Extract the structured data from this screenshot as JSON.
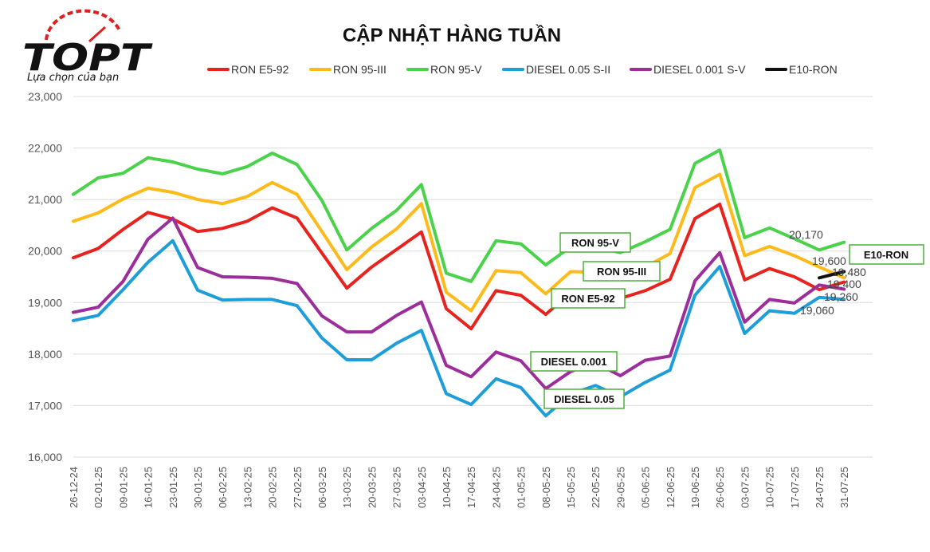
{
  "logo": {
    "brand": "TOPT",
    "tagline": "Lựa chọn của bạn",
    "color": "#111111",
    "accent": "#e02020"
  },
  "chart_data": {
    "type": "line",
    "title": "CẬP NHẬT HÀNG TUẦN",
    "xlabel": "",
    "ylabel": "",
    "ylim": [
      16000,
      23000
    ],
    "yticks": [
      "16,000",
      "17,000",
      "18,000",
      "19,000",
      "20,000",
      "21,000",
      "22,000",
      "23,000"
    ],
    "grid": true,
    "legend_position": "top",
    "x": [
      "26-12-24",
      "02-01-25",
      "09-01-25",
      "16-01-25",
      "23-01-25",
      "30-01-25",
      "06-02-25",
      "13-02-25",
      "20-02-25",
      "27-02-25",
      "06-03-25",
      "13-03-25",
      "20-03-25",
      "27-03-25",
      "03-04-25",
      "10-04-25",
      "17-04-25",
      "24-04-25",
      "01-05-25",
      "08-05-25",
      "15-05-25",
      "22-05-25",
      "29-05-25",
      "05-06-25",
      "12-06-25",
      "19-06-25",
      "26-06-25",
      "03-07-25",
      "10-07-25",
      "17-07-25",
      "24-07-25",
      "31-07-25"
    ],
    "series": [
      {
        "name": "RON E5-92",
        "color": "#e8231e",
        "values": [
          19870,
          20050,
          20420,
          20750,
          20620,
          20380,
          20440,
          20580,
          20840,
          20640,
          19960,
          19280,
          19690,
          20030,
          20370,
          18880,
          18490,
          19230,
          19140,
          18770,
          19190,
          19170,
          19080,
          19230,
          19450,
          20630,
          20910,
          19440,
          19660,
          19500,
          19250,
          19400
        ]
      },
      {
        "name": "RON 95-III",
        "color": "#fdbb1b",
        "values": [
          20580,
          20740,
          21010,
          21220,
          21140,
          21000,
          20920,
          21060,
          21330,
          21100,
          20380,
          19640,
          20080,
          20430,
          20920,
          19200,
          18840,
          19620,
          19580,
          19170,
          19600,
          19590,
          19470,
          19690,
          19950,
          21230,
          21490,
          19910,
          20090,
          19910,
          19690,
          19480
        ]
      },
      {
        "name": "RON 95-V",
        "color": "#4bd24b",
        "values": [
          21100,
          21420,
          21510,
          21810,
          21730,
          21590,
          21500,
          21640,
          21900,
          21680,
          20980,
          20020,
          20440,
          20790,
          21290,
          19570,
          19410,
          20200,
          20140,
          19730,
          20080,
          20080,
          19970,
          20180,
          20420,
          21700,
          21960,
          20260,
          20450,
          20240,
          20020,
          20170
        ]
      },
      {
        "name": "DIESEL 0.05 S-II",
        "color": "#1e9ed8",
        "values": [
          18650,
          18750,
          19250,
          19780,
          20200,
          19240,
          19050,
          19060,
          19060,
          18940,
          18310,
          17890,
          17890,
          18210,
          18460,
          17230,
          17020,
          17520,
          17350,
          16800,
          17220,
          17390,
          17170,
          17450,
          17690,
          19140,
          19700,
          18400,
          18840,
          18790,
          19100,
          19060
        ]
      },
      {
        "name": "DIESEL 0.001 S-V",
        "color": "#9b2e9b",
        "values": [
          18810,
          18910,
          19410,
          20230,
          20640,
          19680,
          19500,
          19490,
          19470,
          19370,
          18740,
          18430,
          18430,
          18750,
          19010,
          17780,
          17560,
          18040,
          17870,
          17330,
          17660,
          17830,
          17580,
          17880,
          17960,
          19420,
          19970,
          18620,
          19060,
          18990,
          19340,
          19260
        ]
      },
      {
        "name": "E10-RON",
        "color": "#111111",
        "values": [
          null,
          null,
          null,
          null,
          null,
          null,
          null,
          null,
          null,
          null,
          null,
          null,
          null,
          null,
          null,
          null,
          null,
          null,
          null,
          null,
          null,
          null,
          null,
          null,
          null,
          null,
          null,
          null,
          null,
          null,
          19480,
          19600
        ]
      }
    ],
    "end_labels": [
      "20,170",
      "19,600",
      "19,480",
      "19,400",
      "19,260",
      "19,060"
    ],
    "annotations": [
      "RON 95-V",
      "RON 95-III",
      "RON E5-92",
      "DIESEL 0.001",
      "DIESEL 0.05",
      "E10-RON"
    ],
    "box_color": "#4caf3a"
  }
}
